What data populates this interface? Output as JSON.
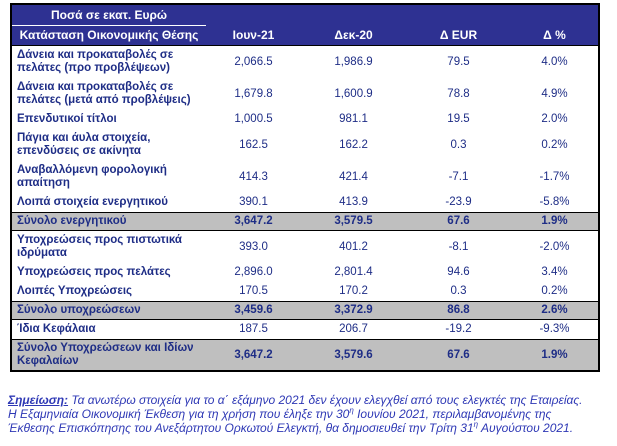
{
  "colors": {
    "header_bg": "#2e3192",
    "header_text": "#ffffff",
    "body_text": "#1e2d86",
    "total_row_bg": "#bfbfbf",
    "border": "#000000",
    "note_text": "#2e38b5"
  },
  "table": {
    "unit_label": "Ποσά σε εκατ. Ευρώ",
    "row_header_title": "Κατάσταση Οικονομικής Θέσης",
    "columns": [
      "Ιουν-21",
      "Δεκ-20",
      "Δ EUR",
      "Δ %"
    ],
    "rows": [
      {
        "label": "Δάνεια και προκαταβολές σε πελάτες (προ προβλέψεων)",
        "values": [
          "2,066.5",
          "1,986.9",
          "79.5",
          "4.0%"
        ],
        "total": false
      },
      {
        "label": "Δάνεια και προκαταβολές σε πελάτες (μετά από προβλέψεις)",
        "values": [
          "1,679.8",
          "1,600.9",
          "78.8",
          "4.9%"
        ],
        "total": false
      },
      {
        "label": "Επενδυτικοί τίτλοι",
        "values": [
          "1,000.5",
          "981.1",
          "19.5",
          "2.0%"
        ],
        "total": false
      },
      {
        "label": "Πάγια και άυλα στοιχεία, επενδύσεις σε ακίνητα",
        "values": [
          "162.5",
          "162.2",
          "0.3",
          "0.2%"
        ],
        "total": false
      },
      {
        "label": "Αναβαλλόμενη φορολογική απαίτηση",
        "values": [
          "414.3",
          "421.4",
          "-7.1",
          "-1.7%"
        ],
        "total": false
      },
      {
        "label": "Λοιπά στοιχεία ενεργητικού",
        "values": [
          "390.1",
          "413.9",
          "-23.9",
          "-5.8%"
        ],
        "total": false
      },
      {
        "label": "Σύνολο ενεργητικού",
        "values": [
          "3,647.2",
          "3,579.5",
          "67.6",
          "1.9%"
        ],
        "total": true
      },
      {
        "label": "Υποχρεώσεις προς πιστωτικά ιδρύματα",
        "values": [
          "393.0",
          "401.2",
          "-8.1",
          "-2.0%"
        ],
        "total": false
      },
      {
        "label": "Υποχρεώσεις προς πελάτες",
        "values": [
          "2,896.0",
          "2,801.4",
          "94.6",
          "3.4%"
        ],
        "total": false
      },
      {
        "label": "Λοιπές Υποχρεώσεις",
        "values": [
          "170.5",
          "170.2",
          "0.3",
          "0.2%"
        ],
        "total": false
      },
      {
        "label": "Σύνολο υποχρεώσεων",
        "values": [
          "3,459.6",
          "3,372.9",
          "86.8",
          "2.6%"
        ],
        "total": true
      },
      {
        "label": "Ίδια Κεφάλαια",
        "values": [
          "187.5",
          "206.7",
          "-19.2",
          "-9.3%"
        ],
        "total": false
      },
      {
        "label": "Σύνολο Υποχρεώσεων και Ιδίων Κεφαλαίων",
        "values": [
          "3,647.2",
          "3,579.6",
          "67.6",
          "1.9%"
        ],
        "total": true
      }
    ]
  },
  "note": {
    "label": "Σημείωση:",
    "lines": [
      [
        {
          "t": "Τα ανωτέρω στοιχεία για το α΄ εξάμηνο 2021 δεν έχουν ελεγχθεί από τους ελεγκτές της Εταιρείας."
        }
      ],
      [
        {
          "t": "Η Εξαμηνιαία Οικονομική Έκθεση για τη χρήση που έληξε την 30"
        },
        {
          "t": "η",
          "sup": true
        },
        {
          "t": " Ιουνίου 2021, περιλαμβανομένης της"
        }
      ],
      [
        {
          "t": "Έκθεσης Επισκόπησης του Ανεξάρτητου Ορκωτού Ελεγκτή, θα δημοσιευθεί την Τρίτη 31"
        },
        {
          "t": "η",
          "sup": true
        },
        {
          "t": " Αυγούστου 2021."
        }
      ]
    ]
  }
}
